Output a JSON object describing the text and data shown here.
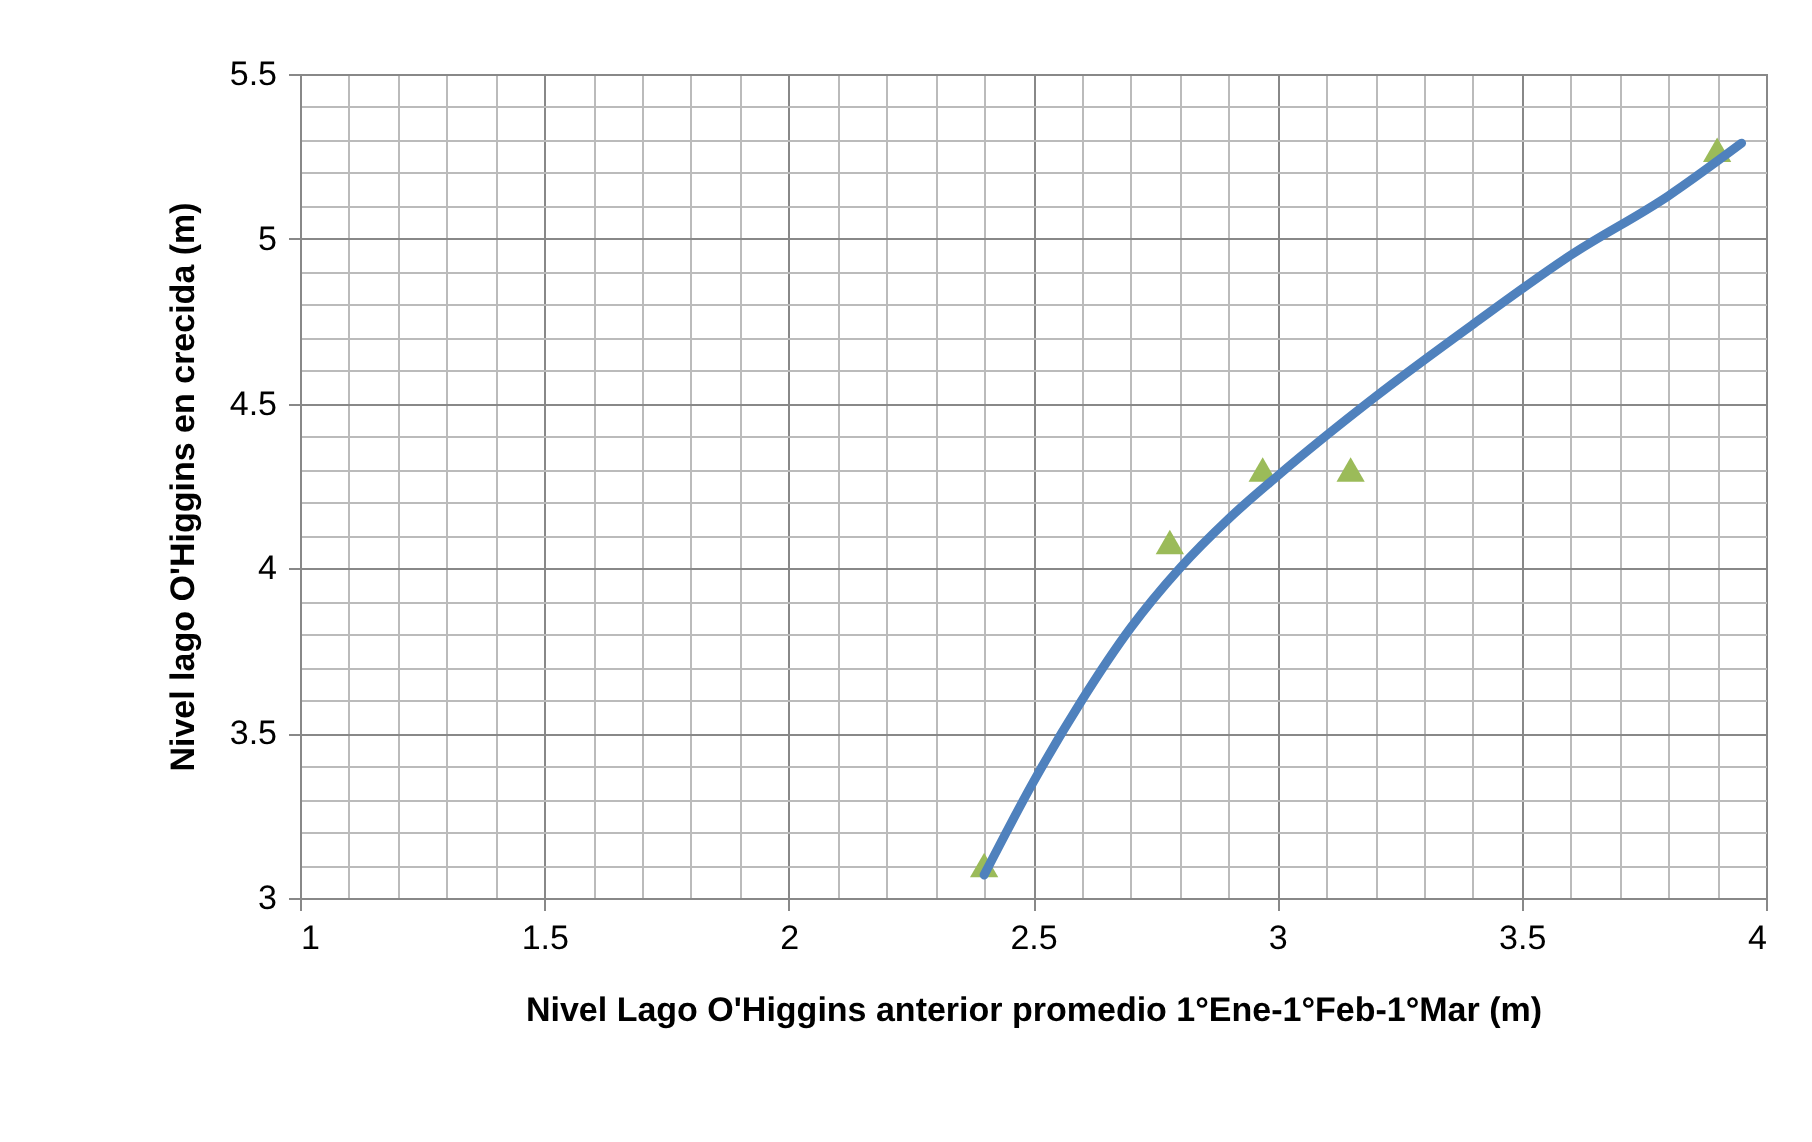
{
  "chart_data": {
    "type": "scatter",
    "xlabel": "Nivel Lago O'Higgins anterior promedio 1°Ene-1°Feb-1°Mar  (m)",
    "ylabel": "Nivel lago  O'Higgins  en crecida (m)",
    "x": [
      2.4,
      2.78,
      2.97,
      3.15,
      3.9
    ],
    "series": [
      {
        "color": "#9bbb59",
        "marker": "triangle",
        "values": [
          3.1,
          4.08,
          4.3,
          4.3,
          5.27
        ]
      },
      {
        "type": "line",
        "color": "#4f81bd",
        "marker": "none",
        "line_style": "solid",
        "x": [
          2.4,
          2.5,
          2.6,
          2.7,
          2.8,
          2.9,
          3.0,
          3.2,
          3.4,
          3.6,
          3.8,
          3.95
        ],
        "values": [
          3.07,
          3.35,
          3.6,
          3.82,
          4.0,
          4.15,
          4.28,
          4.52,
          4.74,
          4.95,
          5.13,
          5.29
        ]
      }
    ],
    "xlim": [
      1,
      4
    ],
    "xticks": [
      1,
      {
        "value": 1.1,
        "label": null
      },
      {
        "value": 1.2,
        "label": null
      },
      {
        "value": 1.3,
        "label": null
      },
      {
        "value": 1.4,
        "label": null
      },
      1.5,
      {
        "value": 1.6,
        "label": null
      },
      {
        "value": 1.7,
        "label": null
      },
      {
        "value": 1.8,
        "label": null
      },
      {
        "value": 1.9,
        "label": null
      },
      2,
      {
        "value": 2.1,
        "label": null
      },
      {
        "value": 2.2,
        "label": null
      },
      {
        "value": 2.3,
        "label": null
      },
      {
        "value": 2.4,
        "label": null
      },
      2.5,
      {
        "value": 2.6,
        "label": null
      },
      {
        "value": 2.7,
        "label": null
      },
      {
        "value": 2.8,
        "label": null
      },
      {
        "value": 2.9,
        "label": null
      },
      3,
      {
        "value": 3.1,
        "label": null
      },
      {
        "value": 3.2,
        "label": null
      },
      {
        "value": 3.3,
        "label": null
      },
      {
        "value": 3.4,
        "label": null
      },
      3.5,
      {
        "value": 3.6,
        "label": null
      },
      {
        "value": 3.7,
        "label": null
      },
      {
        "value": 3.8,
        "label": null
      },
      {
        "value": 3.9,
        "label": null
      },
      4
    ],
    "ylim": [
      3,
      5.5
    ],
    "yticks": [
      3,
      {
        "value": 3.1,
        "label": null
      },
      {
        "value": 3.2,
        "label": null
      },
      {
        "value": 3.3,
        "label": null
      },
      {
        "value": 3.4,
        "label": null
      },
      3.5,
      {
        "value": 3.6,
        "label": null
      },
      {
        "value": 3.7,
        "label": null
      },
      {
        "value": 3.8,
        "label": null
      },
      {
        "value": 3.9,
        "label": null
      },
      4,
      {
        "value": 4.1,
        "label": null
      },
      {
        "value": 4.2,
        "label": null
      },
      {
        "value": 4.3,
        "label": null
      },
      {
        "value": 4.4,
        "label": null
      },
      4.5,
      {
        "value": 4.6,
        "label": null
      },
      {
        "value": 4.7,
        "label": null
      },
      {
        "value": 4.8,
        "label": null
      },
      {
        "value": 4.9,
        "label": null
      },
      5,
      {
        "value": 5.1,
        "label": null
      },
      {
        "value": 5.2,
        "label": null
      },
      {
        "value": 5.3,
        "label": null
      },
      {
        "value": 5.4,
        "label": null
      },
      5.5
    ],
    "grid": true
  }
}
